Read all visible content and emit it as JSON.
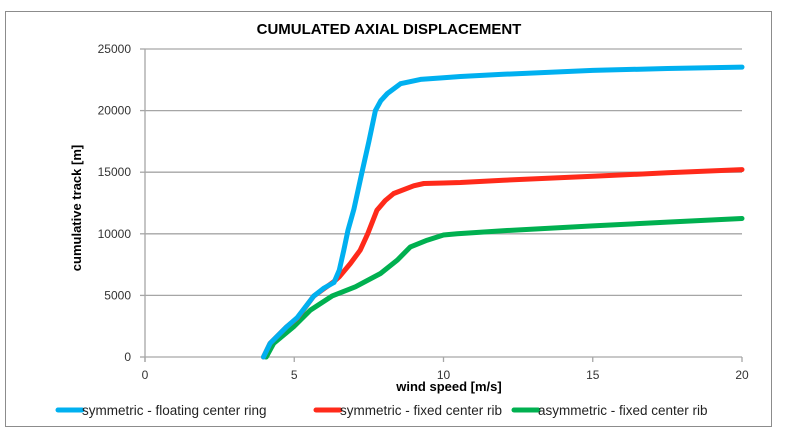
{
  "chart_data": {
    "type": "line",
    "title": "CUMULATED AXIAL DISPLACEMENT",
    "xlabel": "wind speed [m/s]",
    "ylabel": "cumulative track [m]",
    "xlim": [
      0,
      20
    ],
    "ylim": [
      0,
      25000
    ],
    "x_ticks": [
      0,
      5,
      10,
      15,
      20
    ],
    "y_ticks": [
      0,
      5000,
      10000,
      15000,
      20000,
      25000
    ],
    "x_tick_labels": [
      "0",
      "5",
      "10",
      "15",
      "20"
    ],
    "y_tick_labels": [
      "0",
      "5000",
      "10000",
      "15000",
      "20000",
      "25000"
    ],
    "grid": "horizontal",
    "legend_position": "bottom",
    "series": [
      {
        "name": "symmetric - floating center ring",
        "color": "#00B0F0",
        "points": [
          [
            3.97,
            0
          ],
          [
            4.19,
            1100
          ],
          [
            4.75,
            2460
          ],
          [
            5.1,
            3200
          ],
          [
            5.65,
            4940
          ],
          [
            6.0,
            5600
          ],
          [
            6.33,
            6050
          ],
          [
            6.51,
            7050
          ],
          [
            6.66,
            8670
          ],
          [
            6.8,
            10290
          ],
          [
            7.0,
            12000
          ],
          [
            7.27,
            15000
          ],
          [
            7.5,
            17500
          ],
          [
            7.72,
            20000
          ],
          [
            7.9,
            20800
          ],
          [
            8.12,
            21390
          ],
          [
            8.56,
            22180
          ],
          [
            9.23,
            22530
          ],
          [
            10,
            22670
          ],
          [
            10.57,
            22770
          ],
          [
            12,
            22950
          ],
          [
            15,
            23260
          ],
          [
            17.5,
            23420
          ],
          [
            20,
            23530
          ]
        ]
      },
      {
        "name": "symmetric - fixed center rib",
        "color": "#FF2A1A",
        "points": [
          [
            3.97,
            0
          ],
          [
            4.19,
            1100
          ],
          [
            4.75,
            2460
          ],
          [
            5.1,
            3150
          ],
          [
            5.65,
            4940
          ],
          [
            6.0,
            5550
          ],
          [
            6.32,
            6100
          ],
          [
            6.51,
            6510
          ],
          [
            6.88,
            7590
          ],
          [
            7.21,
            8670
          ],
          [
            7.46,
            10000
          ],
          [
            7.77,
            11910
          ],
          [
            8.05,
            12700
          ],
          [
            8.33,
            13270
          ],
          [
            9.0,
            13900
          ],
          [
            9.34,
            14080
          ],
          [
            10,
            14120
          ],
          [
            10.57,
            14160
          ],
          [
            12,
            14350
          ],
          [
            15,
            14670
          ],
          [
            17.5,
            14950
          ],
          [
            20,
            15210
          ]
        ]
      },
      {
        "name": "asymmetric - fixed center rib",
        "color": "#00B050",
        "points": [
          [
            4.06,
            0
          ],
          [
            4.31,
            1110
          ],
          [
            4.98,
            2460
          ],
          [
            5.54,
            3810
          ],
          [
            6.26,
            4940
          ],
          [
            7.05,
            5700
          ],
          [
            7.89,
            6780
          ],
          [
            8.45,
            7860
          ],
          [
            8.89,
            8940
          ],
          [
            9.45,
            9480
          ],
          [
            10,
            9900
          ],
          [
            10.46,
            10000
          ],
          [
            12,
            10250
          ],
          [
            15,
            10640
          ],
          [
            17.5,
            10950
          ],
          [
            20,
            11240
          ]
        ]
      }
    ]
  }
}
